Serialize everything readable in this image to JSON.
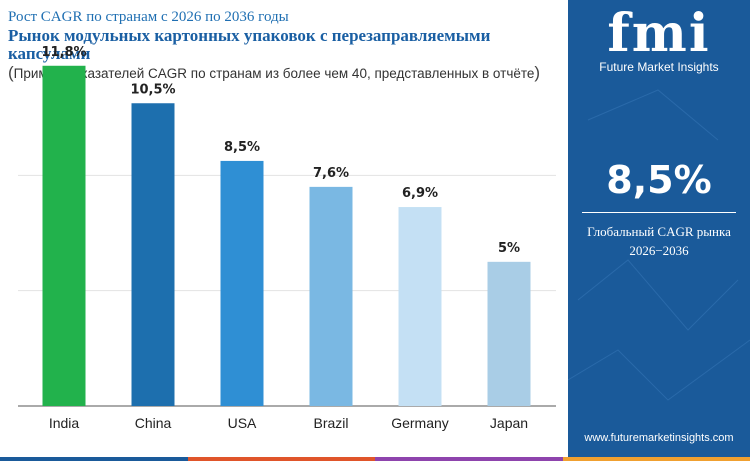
{
  "header": {
    "supertitle": "Рост CAGR по странам с 2026 по 2036 годы",
    "title": "Рынок модульных картонных упаковок с перезаправляемыми капсулами",
    "subtitle": "Пример показателей CAGR по странам из более чем 40, представленных в отчёте"
  },
  "chart_data": {
    "type": "bar",
    "title": "Рынок модульных картонных упаковок с перезаправляемыми капсулами",
    "categories": [
      "India",
      "China",
      "USA",
      "Brazil",
      "Germany",
      "Japan"
    ],
    "values": [
      11.8,
      10.5,
      8.5,
      7.6,
      6.9,
      5.0
    ],
    "value_labels": [
      "11,8%",
      "10,5%",
      "8,5%",
      "7,6%",
      "6,9%",
      "5%"
    ],
    "bar_colors": [
      "#22b24c",
      "#1d6fae",
      "#2f8fd4",
      "#7ab8e3",
      "#c4e0f4",
      "#a9cde6"
    ],
    "ylim": [
      0,
      12
    ],
    "grid": true,
    "legend": "none"
  },
  "sidebar": {
    "logo_mark": "fmi",
    "logo_text": "Future Market Insights",
    "value": "8,5%",
    "label_line1": "Глобальный CAGR рынка",
    "label_line2": "2026−2036",
    "website": "www.futuremarketinsights.com",
    "background": "#1a5a9a"
  },
  "bottom_bar_colors": [
    "#1a5a9a",
    "#e0552a",
    "#8e44ad",
    "#f0a030"
  ]
}
